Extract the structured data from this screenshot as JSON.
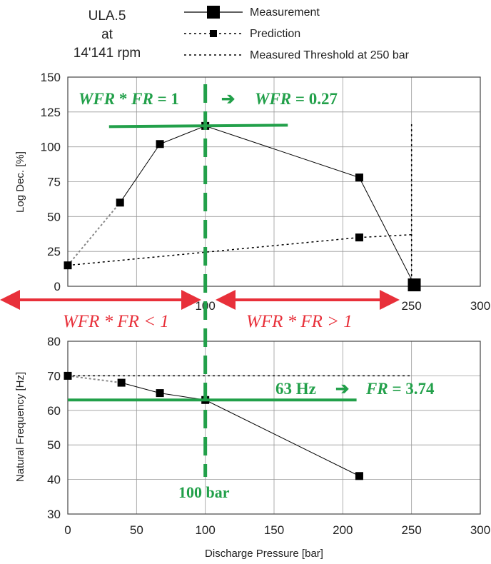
{
  "header": {
    "title_lines": [
      "ULA.5",
      "at",
      "14'141 rpm"
    ]
  },
  "legend": [
    {
      "label": "Measurement",
      "style": "solid-large-marker"
    },
    {
      "label": "Prediction",
      "style": "dotted-small-marker"
    },
    {
      "label": "Measured Threshold at 250 bar",
      "style": "dotted"
    }
  ],
  "colors": {
    "annotation_green": "#22a04a",
    "annotation_red": "#e8303a",
    "grid": "#9a9a9a",
    "series": "#000000"
  },
  "annotations": {
    "top_left_lhs": "WFR",
    "top_left_op": "*",
    "top_left_rhs": "FR",
    "top_left_eq": "= 1",
    "top_arrow": "➔",
    "top_right_lhs": "WFR",
    "top_right_eq": "= 0.27",
    "region_left_a": "WFR",
    "region_left_op": "*",
    "region_left_b": "FR",
    "region_left_rel": "< 1",
    "region_right_a": "WFR",
    "region_right_op": "*",
    "region_right_b": "FR",
    "region_right_rel": "> 1",
    "freq_left": "63 Hz",
    "freq_arrow": "➔",
    "freq_right_lhs": "FR",
    "freq_right_eq": "= 3.74",
    "pressure_label": "100 bar"
  },
  "chart_data": [
    {
      "type": "line",
      "ylabel": "Log Dec.  [%]",
      "xlabel": "",
      "xlim": [
        0,
        300
      ],
      "ylim": [
        0,
        150
      ],
      "xticks": [
        100,
        250,
        300
      ],
      "yticks": [
        0,
        25,
        50,
        75,
        100,
        125,
        150
      ],
      "grid": true,
      "series": [
        {
          "name": "Measurement",
          "x": [
            38,
            67,
            100,
            212,
            252
          ],
          "y": [
            60,
            102,
            115,
            78,
            1
          ],
          "style": "solid"
        },
        {
          "name": "Prediction",
          "x": [
            0,
            212
          ],
          "y": [
            15,
            35
          ],
          "style": "dotted"
        },
        {
          "name": "Measurement-extrapolation",
          "x": [
            0,
            38
          ],
          "y": [
            15,
            60
          ],
          "style": "dotted-gray"
        },
        {
          "name": "Prediction-extension",
          "x": [
            212,
            250
          ],
          "y": [
            35,
            37
          ],
          "style": "dotted"
        },
        {
          "name": "Measured Threshold at 250 bar",
          "x": [
            250,
            250
          ],
          "y": [
            0,
            117
          ],
          "style": "dotted"
        }
      ],
      "guides": {
        "horizontal": {
          "y": 115,
          "x_from": 30,
          "x_to": 160
        },
        "vertical_x": 100
      }
    },
    {
      "type": "line",
      "ylabel": "Natural Frequency  [Hz]",
      "xlabel": "Discharge Pressure  [bar]",
      "xlim": [
        0,
        300
      ],
      "ylim": [
        30,
        80
      ],
      "xticks": [
        0,
        50,
        100,
        150,
        200,
        250,
        300
      ],
      "yticks": [
        30,
        40,
        50,
        60,
        70,
        80
      ],
      "grid": true,
      "series": [
        {
          "name": "Measurement",
          "x": [
            39,
            67,
            100,
            212
          ],
          "y": [
            68,
            65,
            63,
            41
          ],
          "style": "solid"
        },
        {
          "name": "Measurement-extrapolation",
          "x": [
            0,
            39
          ],
          "y": [
            70,
            68
          ],
          "style": "dotted-gray"
        },
        {
          "name": "Prediction",
          "x": [
            0,
            250
          ],
          "y": [
            70,
            70
          ],
          "style": "dotted"
        }
      ],
      "guides": {
        "horizontal": {
          "y": 63,
          "x_from": 0,
          "x_to": 210
        },
        "vertical_x": 100
      }
    }
  ]
}
